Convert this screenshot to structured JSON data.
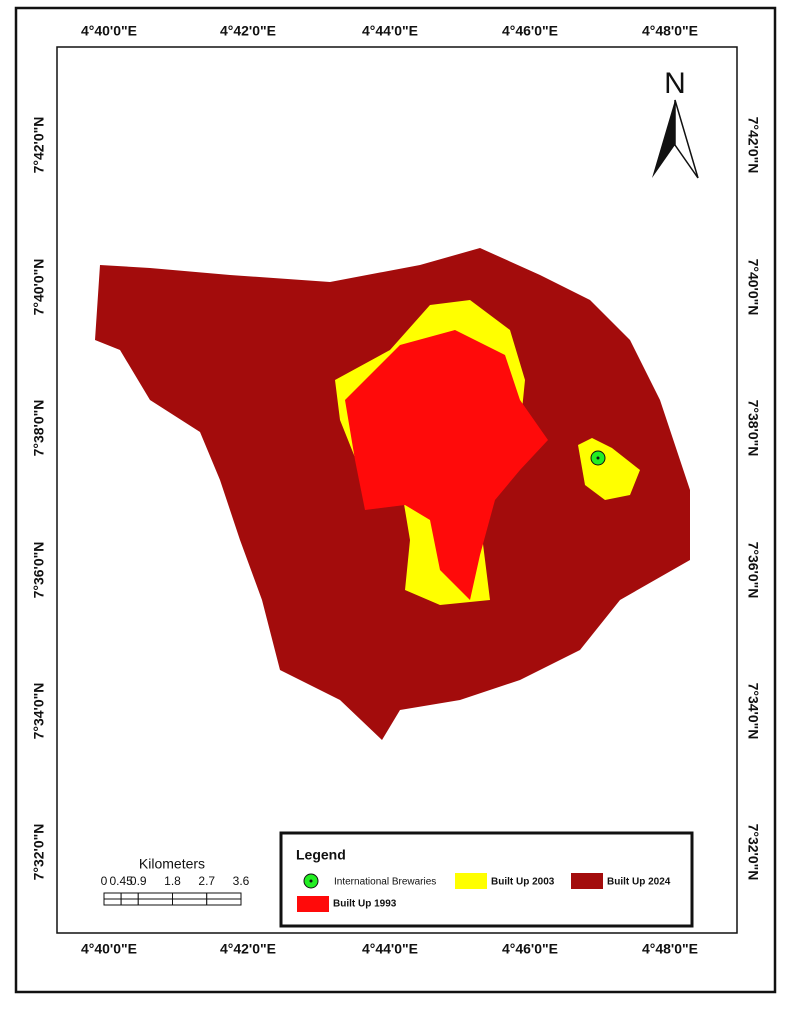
{
  "top_labels": [
    "4°40'0\"E",
    "4°42'0\"E",
    "4°44'0\"E",
    "4°46'0\"E",
    "4°48'0\"E"
  ],
  "bottom_labels": [
    "4°40'0\"E",
    "4°42'0\"E",
    "4°44'0\"E",
    "4°46'0\"E",
    "4°48'0\"E"
  ],
  "left_labels": [
    "7°42'0\"N",
    "7°40'0\"N",
    "7°38'0\"N",
    "7°36'0\"N",
    "7°34'0\"N",
    "7°32'0\"N"
  ],
  "right_labels": [
    "7°42'0\"N",
    "7°40'0\"N",
    "7°38'0\"N",
    "7°36'0\"N",
    "7°34'0\"N",
    "7°32'0\"N"
  ],
  "north": "N",
  "scale": {
    "title": "Kilometers",
    "ticks": [
      0,
      0.45,
      0.9,
      1.8,
      2.7,
      3.6
    ]
  },
  "legend": {
    "title": "Legend",
    "items": [
      {
        "label": "International Brewaries",
        "color": "#22ee22"
      },
      {
        "label": "Built Up 2003",
        "color": "#ffff00"
      },
      {
        "label": "Built Up 2024",
        "color": "#a30c0c"
      },
      {
        "label": "Built Up 1993",
        "color": "#ff0a0a"
      }
    ]
  }
}
